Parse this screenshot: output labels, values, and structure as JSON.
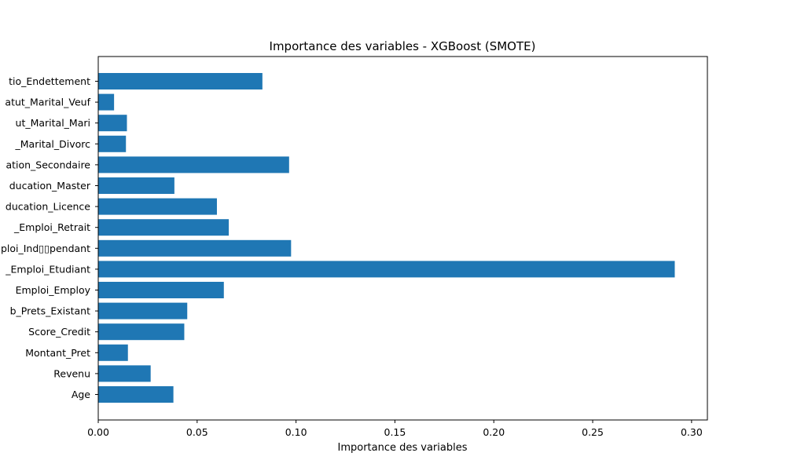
{
  "chart_data": {
    "type": "bar",
    "orientation": "horizontal",
    "title": "Importance des variables - XGBoost (SMOTE)",
    "xlabel": "Importance des variables",
    "ylabel": "",
    "xlim": [
      0,
      0.308
    ],
    "x_ticks": [
      0.0,
      0.05,
      0.1,
      0.15,
      0.2,
      0.25,
      0.3
    ],
    "x_tick_labels": [
      "0.00",
      "0.05",
      "0.10",
      "0.15",
      "0.20",
      "0.25",
      "0.30"
    ],
    "grid": false,
    "bar_color": "#1f77b4",
    "categories": [
      "Age",
      "Revenu",
      "Montant_Pret",
      "Score_Credit",
      "Nb_Prets_Existant",
      "Type_Emploi_Employ",
      "Type_Emploi_Etudiant",
      "Type_Emploi_Indpendant",
      "Type_Emploi_Retrait",
      "Niveau_Education_Licence",
      "Niveau_Education_Master",
      "Niveau_Education_Secondaire",
      "Statut_Marital_Divorc",
      "Statut_Marital_Mari",
      "Statut_Marital_Veuf",
      "Ratio_Endettement"
    ],
    "category_display": [
      "Age",
      "Revenu",
      "Montant_Pret",
      "Score_Credit",
      "b_Prets_Existant",
      "Emploi_Employ",
      "_Emploi_Etudiant",
      "ploi_Ind▯▯pendant",
      "_Emploi_Retrait",
      "ducation_Licence",
      "ducation_Master",
      "ation_Secondaire",
      "_Marital_Divorc",
      "ut_Marital_Mari",
      "atut_Marital_Veuf",
      "tio_Endettement"
    ],
    "values": [
      0.038,
      0.0265,
      0.015,
      0.0435,
      0.045,
      0.0635,
      0.2915,
      0.0975,
      0.066,
      0.06,
      0.0385,
      0.0965,
      0.014,
      0.0145,
      0.008,
      0.083
    ]
  }
}
